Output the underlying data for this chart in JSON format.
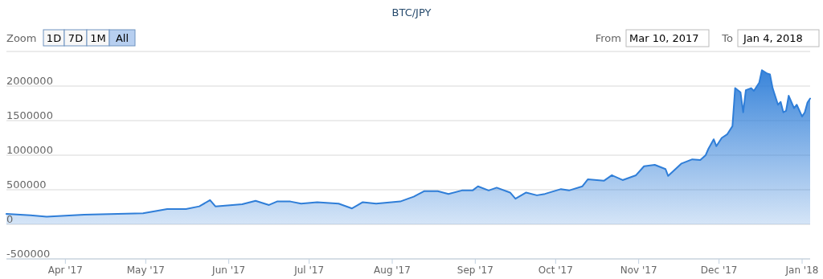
{
  "chart_data": {
    "type": "area",
    "title": "BTC/JPY",
    "annotations": [
      "Zoom",
      "1D",
      "7D",
      "1M",
      "All",
      "From",
      "Mar 10, 2017",
      "To",
      "Jan 4, 2018"
    ],
    "x": [
      "2017-03-10",
      "2017-03-19",
      "2017-03-25",
      "2017-04-08",
      "2017-04-30",
      "2017-05-09",
      "2017-05-16",
      "2017-05-21",
      "2017-05-25",
      "2017-05-27",
      "2017-06-06",
      "2017-06-11",
      "2017-06-16",
      "2017-06-19",
      "2017-06-24",
      "2017-06-28",
      "2017-07-04",
      "2017-07-12",
      "2017-07-17",
      "2017-07-21",
      "2017-07-26",
      "2017-08-04",
      "2017-08-09",
      "2017-08-13",
      "2017-08-18",
      "2017-08-22",
      "2017-08-27",
      "2017-08-31",
      "2017-09-02",
      "2017-09-06",
      "2017-09-09",
      "2017-09-14",
      "2017-09-16",
      "2017-09-20",
      "2017-09-24",
      "2017-09-27",
      "2017-10-03",
      "2017-10-06",
      "2017-10-11",
      "2017-10-13",
      "2017-10-19",
      "2017-10-22",
      "2017-10-26",
      "2017-10-31",
      "2017-11-03",
      "2017-11-07",
      "2017-11-11",
      "2017-11-12",
      "2017-11-17",
      "2017-11-21",
      "2017-11-24",
      "2017-11-26",
      "2017-11-27",
      "2017-11-29",
      "2017-11-30",
      "2017-12-02",
      "2017-12-04",
      "2017-12-06",
      "2017-12-07",
      "2017-12-09",
      "2017-12-10",
      "2017-12-11",
      "2017-12-13",
      "2017-12-14",
      "2017-12-16",
      "2017-12-17",
      "2017-12-19",
      "2017-12-20",
      "2017-12-21",
      "2017-12-23",
      "2017-12-24",
      "2017-12-25",
      "2017-12-26",
      "2017-12-27",
      "2017-12-29",
      "2017-12-30",
      "2018-01-01",
      "2018-01-02",
      "2018-01-03",
      "2018-01-04"
    ],
    "series": [
      {
        "color": "#2f7ed8",
        "values": [
          150000,
          130000,
          110000,
          140000,
          160000,
          220000,
          220000,
          260000,
          350000,
          260000,
          290000,
          340000,
          280000,
          330000,
          330000,
          300000,
          320000,
          300000,
          230000,
          320000,
          300000,
          330000,
          400000,
          480000,
          480000,
          440000,
          490000,
          490000,
          550000,
          490000,
          530000,
          460000,
          370000,
          460000,
          420000,
          440000,
          510000,
          490000,
          550000,
          650000,
          630000,
          710000,
          640000,
          710000,
          840000,
          860000,
          800000,
          700000,
          880000,
          940000,
          930000,
          1000000,
          1090000,
          1230000,
          1130000,
          1250000,
          1300000,
          1420000,
          1970000,
          1910000,
          1620000,
          1940000,
          1970000,
          1930000,
          2050000,
          2230000,
          2180000,
          2170000,
          1970000,
          1730000,
          1770000,
          1620000,
          1640000,
          1860000,
          1680000,
          1730000,
          1560000,
          1620000,
          1760000,
          1820000
        ]
      }
    ],
    "xlim": [
      "2017-03-10",
      "2018-01-04"
    ],
    "xticks": [
      {
        "value": "2017-04-01",
        "label": "Apr '17"
      },
      {
        "value": "2017-05-01",
        "label": "May '17"
      },
      {
        "value": "2017-06-01",
        "label": "Jun '17"
      },
      {
        "value": "2017-07-01",
        "label": "Jul '17"
      },
      {
        "value": "2017-08-01",
        "label": "Aug '17"
      },
      {
        "value": "2017-09-01",
        "label": "Sep '17"
      },
      {
        "value": "2017-10-01",
        "label": "Oct '17"
      },
      {
        "value": "2017-11-01",
        "label": "Nov '17"
      },
      {
        "value": "2017-12-01",
        "label": "Dec '17"
      },
      {
        "value": "2018-01-01",
        "label": "Jan '18"
      }
    ],
    "ylim": [
      -500000,
      2500000
    ],
    "yticks": [
      -500000,
      0,
      500000,
      1000000,
      1500000,
      2000000,
      {
        "value": 2500000,
        "label": null
      }
    ],
    "grid": "y"
  }
}
